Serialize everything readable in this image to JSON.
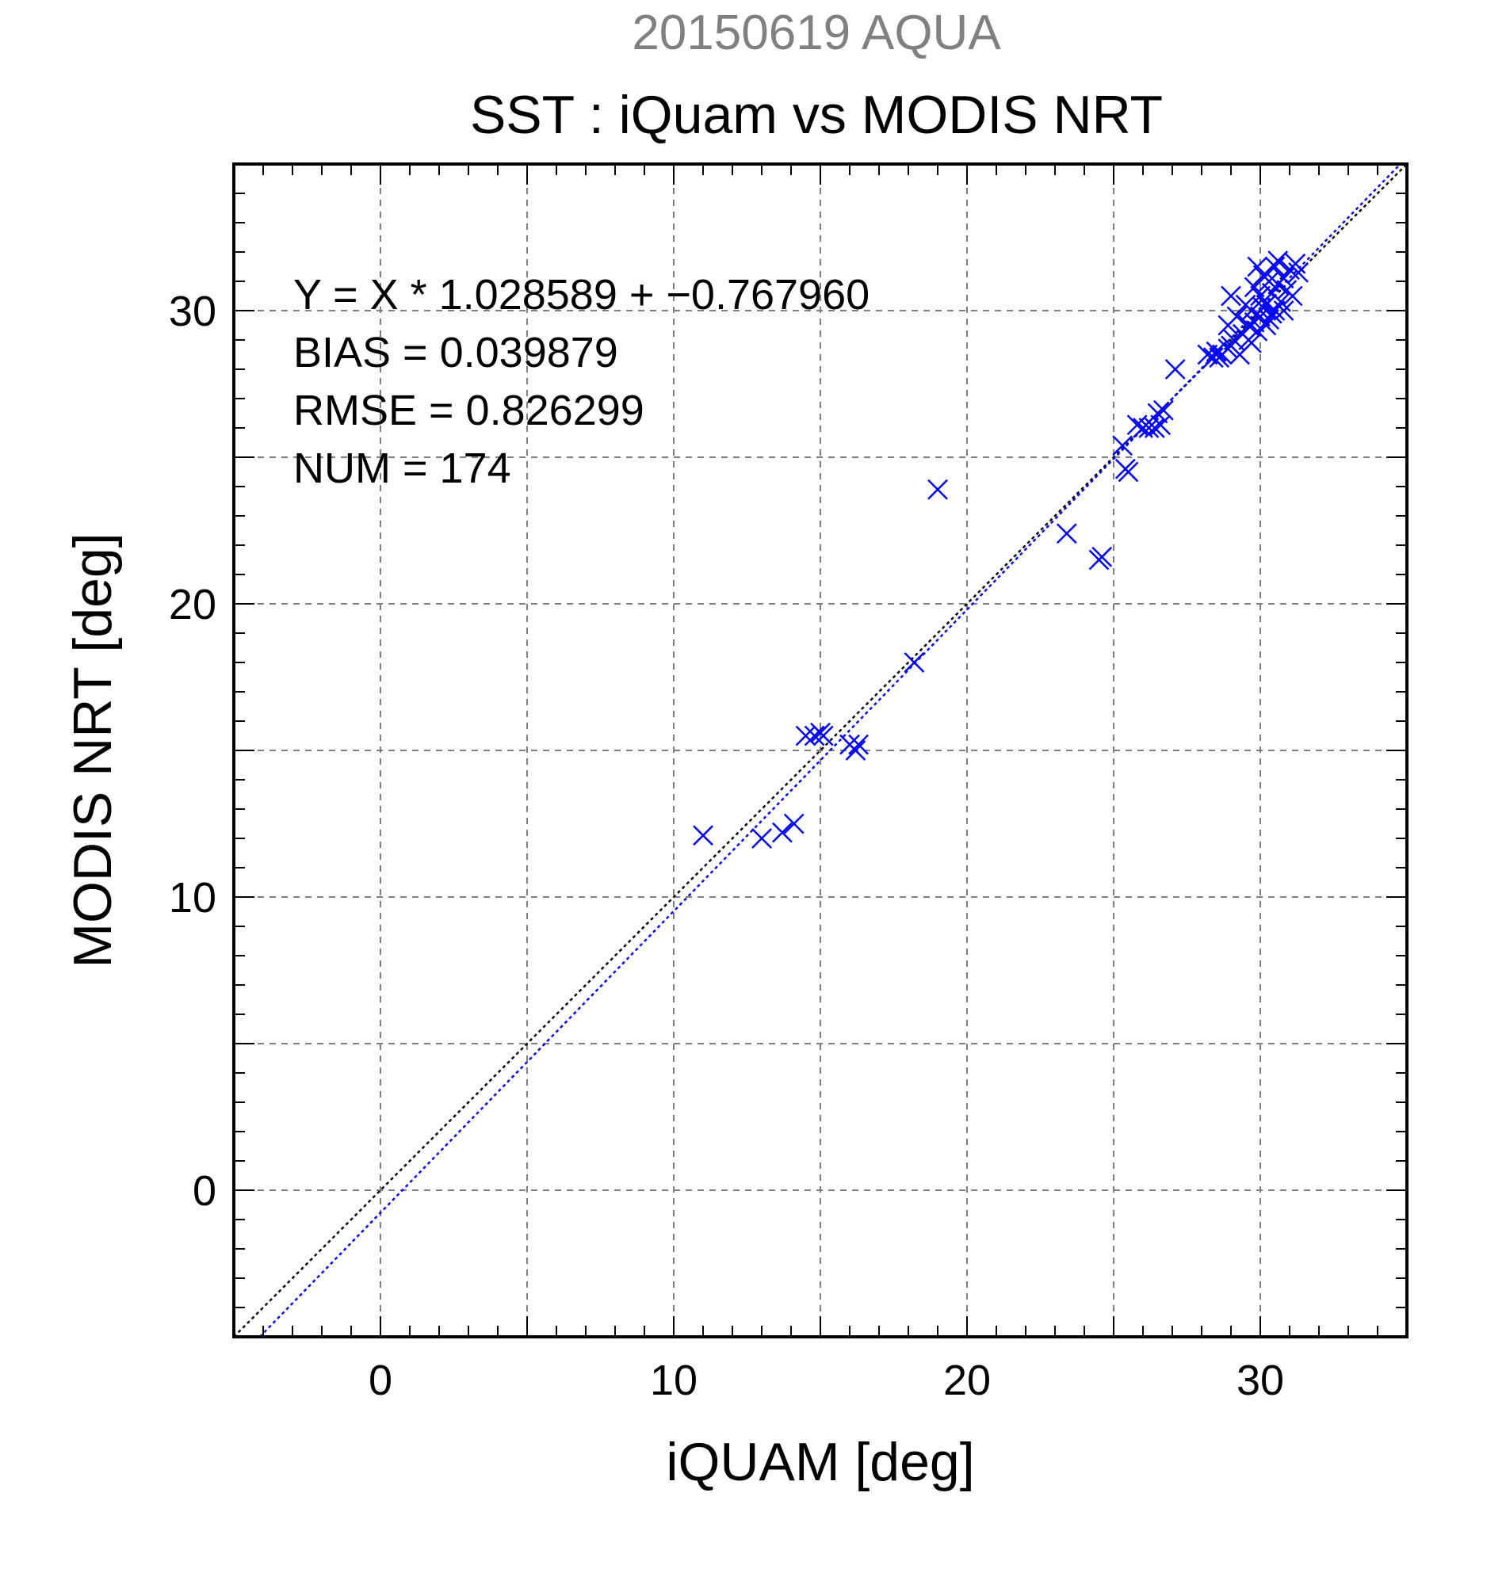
{
  "header": {
    "date_title": "20150619 AQUA",
    "main_title": "SST : iQuam vs MODIS NRT"
  },
  "stats": {
    "regression": "Y = X * 1.028589 + −0.767960",
    "bias": "BIAS = 0.039879",
    "rmse": "RMSE = 0.826299",
    "num": "NUM = 174"
  },
  "colors": {
    "title_gray": "#808080",
    "marker_blue": "#0000ff",
    "grid_gray": "#7f7f7f",
    "axis_black": "#000000",
    "identity_line": "#000000",
    "fit_line": "#0000ff"
  },
  "chart_data": {
    "type": "scatter",
    "title": "SST : iQuam vs MODIS NRT",
    "subtitle": "20150619 AQUA",
    "xlabel": "iQUAM [deg]",
    "ylabel": "MODIS NRT [deg]",
    "xlim": [
      -5,
      35
    ],
    "ylim": [
      -5,
      35
    ],
    "xticks": [
      0,
      10,
      20,
      30
    ],
    "yticks": [
      0,
      10,
      20,
      30
    ],
    "grid": true,
    "grid_step": 5,
    "minor_tick_step": 1,
    "marker": "x",
    "lines": [
      {
        "kind": "identity",
        "slope": 1,
        "intercept": 0,
        "style": "dotted",
        "color": "#000000"
      },
      {
        "kind": "fit",
        "slope": 1.028589,
        "intercept": -0.76796,
        "style": "dotted",
        "color": "#0000ff"
      }
    ],
    "points": [
      [
        11.0,
        12.1
      ],
      [
        13.0,
        12.0
      ],
      [
        13.7,
        12.2
      ],
      [
        14.1,
        12.5
      ],
      [
        14.5,
        15.5
      ],
      [
        14.8,
        15.5
      ],
      [
        15.0,
        15.6
      ],
      [
        15.1,
        15.5
      ],
      [
        16.0,
        15.2
      ],
      [
        16.2,
        15.0
      ],
      [
        16.3,
        15.2
      ],
      [
        18.2,
        18.0
      ],
      [
        19.0,
        23.9
      ],
      [
        23.4,
        22.4
      ],
      [
        24.5,
        21.5
      ],
      [
        24.6,
        21.6
      ],
      [
        25.3,
        25.4
      ],
      [
        25.4,
        24.6
      ],
      [
        25.5,
        24.5
      ],
      [
        25.8,
        26.1
      ],
      [
        26.0,
        26.0
      ],
      [
        26.2,
        26.0
      ],
      [
        26.4,
        26.0
      ],
      [
        26.6,
        26.1
      ],
      [
        26.5,
        26.5
      ],
      [
        26.7,
        26.6
      ],
      [
        27.1,
        28.0
      ],
      [
        28.2,
        28.5
      ],
      [
        28.4,
        28.4
      ],
      [
        28.5,
        28.6
      ],
      [
        28.6,
        28.4
      ],
      [
        28.7,
        28.5
      ],
      [
        28.9,
        28.7
      ],
      [
        29.0,
        28.8
      ],
      [
        29.1,
        29.0
      ],
      [
        28.9,
        29.5
      ],
      [
        29.0,
        30.5
      ],
      [
        29.2,
        29.8
      ],
      [
        29.3,
        28.5
      ],
      [
        29.4,
        29.2
      ],
      [
        29.5,
        30.2
      ],
      [
        29.6,
        29.5
      ],
      [
        29.7,
        30.0
      ],
      [
        29.8,
        30.8
      ],
      [
        29.9,
        29.3
      ],
      [
        30.0,
        30.5
      ],
      [
        30.0,
        29.8
      ],
      [
        30.1,
        31.2
      ],
      [
        30.2,
        30.2
      ],
      [
        30.3,
        29.7
      ],
      [
        30.3,
        31.0
      ],
      [
        30.4,
        30.6
      ],
      [
        30.5,
        30.0
      ],
      [
        30.5,
        31.5
      ],
      [
        30.6,
        30.9
      ],
      [
        30.7,
        30.3
      ],
      [
        30.8,
        31.1
      ],
      [
        30.9,
        30.7
      ],
      [
        31.0,
        31.4
      ],
      [
        31.1,
        30.5
      ],
      [
        31.3,
        31.3
      ],
      [
        29.6,
        29.0
      ],
      [
        29.8,
        29.6
      ],
      [
        30.2,
        29.5
      ],
      [
        30.6,
        31.7
      ],
      [
        29.9,
        31.5
      ],
      [
        30.4,
        29.9
      ],
      [
        29.7,
        28.9
      ],
      [
        30.1,
        30.1
      ],
      [
        30.8,
        30.0
      ],
      [
        31.2,
        31.6
      ]
    ]
  }
}
